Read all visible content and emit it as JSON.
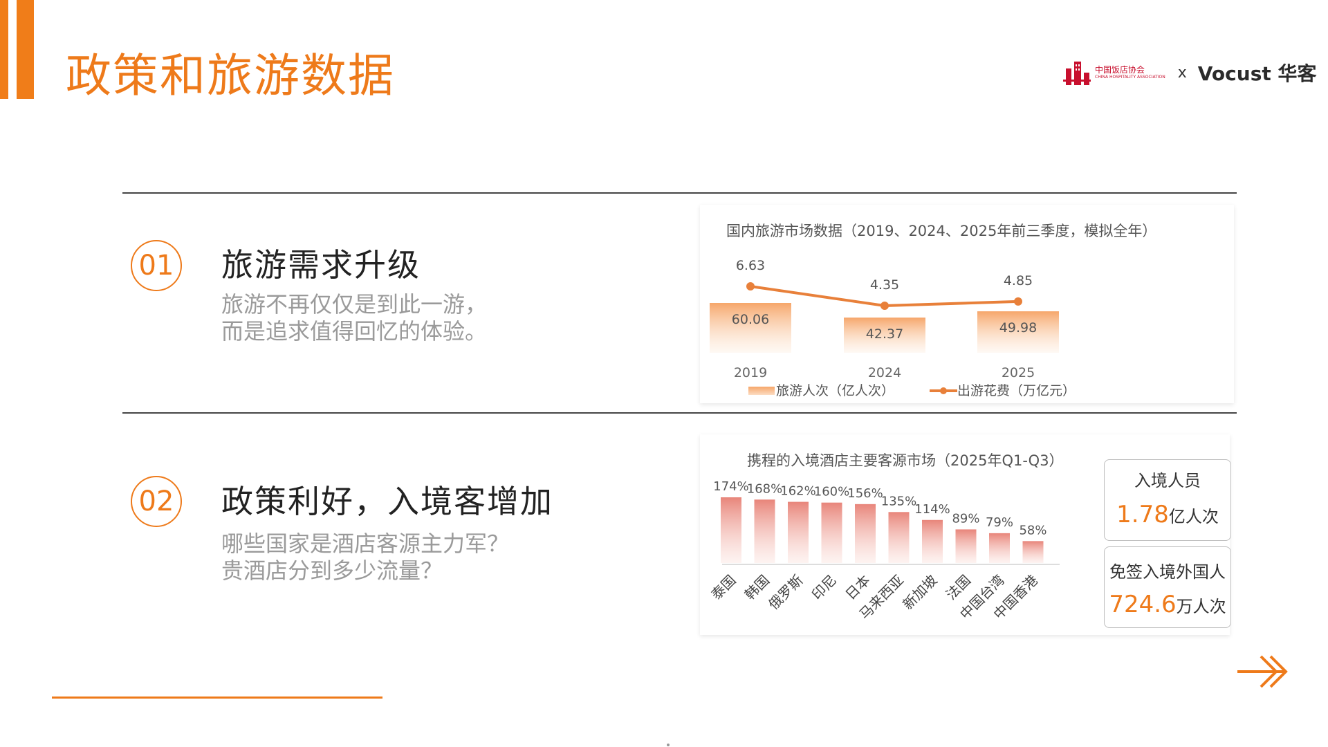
{
  "page": {
    "title": "政策和旅游数据"
  },
  "logo": {
    "cn_name": "中国饭店协会",
    "en_name": "CHINA HOSPITALITY ASSOCIATION",
    "separator": "x",
    "brand": "Vocust 华客"
  },
  "sections": [
    {
      "number": "01",
      "heading": "旅游需求升级",
      "desc_line1": "旅游不再仅仅是到此一游，",
      "desc_line2": "而是追求值得回忆的体验。"
    },
    {
      "number": "02",
      "heading": "政策利好，入境客增加",
      "desc_line1": "哪些国家是酒店客源主力军？",
      "desc_line2": "贵酒店分到多少流量？"
    }
  ],
  "stats": {
    "inbound_label": "入境人员",
    "inbound_value": "1.78",
    "inbound_unit": "亿人次",
    "visafree_label": "免签入境外国人",
    "visafree_value": "724.6",
    "visafree_unit": "万人次"
  },
  "colors": {
    "accent": "#EE7A1A",
    "bar_fill": "#F6A66A",
    "bar2_fill": "#E8857A"
  },
  "chart_data": [
    {
      "type": "bar",
      "title": "国内旅游市场数据（2019、2024、2025年前三季度，模拟全年）",
      "categories": [
        "2019",
        "2024",
        "2025"
      ],
      "series": [
        {
          "name": "旅游人次（亿人次）",
          "type": "bar",
          "values": [
            60.06,
            42.37,
            49.98
          ]
        },
        {
          "name": "出游花费（万亿元）",
          "type": "line",
          "values": [
            6.63,
            4.35,
            4.85
          ]
        }
      ],
      "legend": "bottom"
    },
    {
      "type": "bar",
      "title": "携程的入境酒店主要客源市场（2025年Q1-Q3）",
      "categories": [
        "泰国",
        "韩国",
        "俄罗斯",
        "印尼",
        "日本",
        "马来西亚",
        "新加坡",
        "法国",
        "中国台湾",
        "中国香港"
      ],
      "values": [
        174,
        168,
        162,
        160,
        156,
        135,
        114,
        89,
        79,
        58
      ],
      "value_labels": [
        "174%",
        "168%",
        "162%",
        "160%",
        "156%",
        "135%",
        "114%",
        "89%",
        "79%",
        "58%"
      ]
    }
  ]
}
